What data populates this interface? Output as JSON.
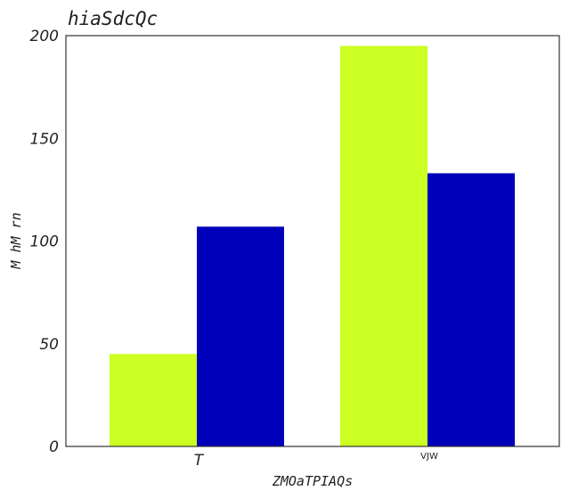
{
  "chart_data": {
    "type": "bar",
    "title": "hiaSdcQc",
    "xlabel": "ZMOaTPIAQs",
    "ylabel": "M  hM rn",
    "categories": [
      "T",
      "VJW"
    ],
    "series": [
      {
        "values": [
          45,
          195
        ],
        "color": "#ccff22"
      },
      {
        "values": [
          107,
          133
        ],
        "color": "#0000bb"
      }
    ],
    "ylim": [
      0,
      200
    ],
    "yticks": [
      0,
      50,
      100,
      150,
      200
    ],
    "grid": false,
    "legend": "none"
  }
}
